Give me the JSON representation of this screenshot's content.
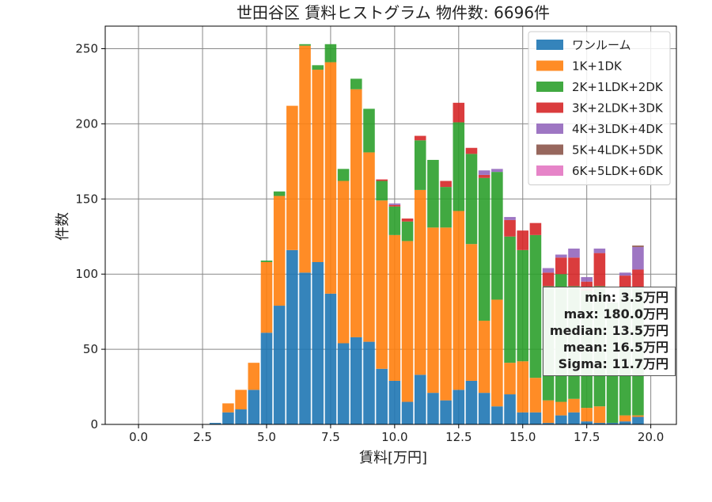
{
  "chart_data": {
    "type": "bar",
    "stacked": true,
    "title": "世田谷区 賃料ヒストグラム 物件数: 6696件",
    "xlabel": "賃料[万円]",
    "ylabel": "件数",
    "xlim": [
      -1.3,
      21.0
    ],
    "ylim": [
      0,
      265
    ],
    "xticks": [
      "0.0",
      "2.5",
      "5.0",
      "7.5",
      "10.0",
      "12.5",
      "15.0",
      "17.5",
      "20.0"
    ],
    "yticks": [
      "0",
      "50",
      "100",
      "150",
      "200",
      "250"
    ],
    "grid": true,
    "legend_position": "top-right",
    "bin_width": 0.5,
    "x": [
      3.0,
      3.5,
      4.0,
      4.5,
      5.0,
      5.5,
      6.0,
      6.5,
      7.0,
      7.5,
      8.0,
      8.5,
      9.0,
      9.5,
      10.0,
      10.5,
      11.0,
      11.5,
      12.0,
      12.5,
      13.0,
      13.5,
      14.0,
      14.5,
      15.0,
      15.5,
      16.0,
      16.5,
      17.0,
      17.5,
      18.0,
      18.5,
      19.0,
      19.5
    ],
    "series": [
      {
        "name": "ワンルーム",
        "color": "#1f77b4",
        "values": [
          1,
          8,
          10,
          23,
          61,
          79,
          116,
          101,
          108,
          87,
          54,
          58,
          55,
          37,
          29,
          15,
          33,
          21,
          16,
          23,
          29,
          21,
          12,
          20,
          8,
          8,
          1,
          6,
          8,
          2,
          1,
          1,
          2,
          5
        ]
      },
      {
        "name": "1K+1DK",
        "color": "#ff7f0e",
        "values": [
          0,
          6,
          13,
          18,
          47,
          73,
          96,
          151,
          128,
          154,
          108,
          165,
          126,
          112,
          97,
          107,
          123,
          110,
          115,
          119,
          91,
          48,
          71,
          21,
          34,
          23,
          15,
          9,
          9,
          9,
          11,
          0,
          4,
          1
        ]
      },
      {
        "name": "2K+1LDK+2DK",
        "color": "#2ca02c",
        "values": [
          0,
          0,
          0,
          0,
          1,
          3,
          0,
          1,
          3,
          12,
          8,
          7,
          29,
          13,
          19,
          13,
          33,
          45,
          27,
          59,
          60,
          95,
          85,
          84,
          74,
          95,
          76,
          85,
          75,
          78,
          80,
          80,
          85,
          85
        ]
      },
      {
        "name": "3K+2LDK+3DK",
        "color": "#d62728",
        "values": [
          0,
          0,
          0,
          0,
          0,
          0,
          0,
          0,
          0,
          0,
          0,
          0,
          0,
          1,
          1,
          2,
          3,
          0,
          4,
          13,
          4,
          2,
          0,
          11,
          13,
          8,
          9,
          11,
          19,
          6,
          22,
          0,
          8,
          12
        ]
      },
      {
        "name": "4K+3LDK+4DK",
        "color": "#9467bd",
        "values": [
          0,
          0,
          0,
          0,
          0,
          0,
          0,
          0,
          0,
          0,
          0,
          0,
          0,
          0,
          1,
          0,
          0,
          0,
          0,
          0,
          0,
          3,
          2,
          2,
          0,
          0,
          3,
          2,
          6,
          3,
          3,
          0,
          2,
          15
        ]
      },
      {
        "name": "5K+4LDK+5DK",
        "color": "#8c564b",
        "values": [
          0,
          0,
          0,
          0,
          0,
          0,
          0,
          0,
          0,
          0,
          0,
          0,
          0,
          0,
          0,
          0,
          0,
          0,
          0,
          0,
          0,
          0,
          0,
          0,
          0,
          0,
          0,
          0,
          0,
          0,
          0,
          0,
          0,
          1
        ]
      },
      {
        "name": "6K+5LDK+6DK",
        "color": "#e377c2",
        "values": [
          0,
          0,
          0,
          0,
          0,
          0,
          0,
          0,
          0,
          0,
          0,
          0,
          0,
          0,
          0,
          0,
          0,
          0,
          0,
          0,
          0,
          0,
          0,
          0,
          0,
          0,
          0,
          0,
          0,
          0,
          0,
          0,
          0,
          0
        ]
      }
    ]
  },
  "stats": [
    "min: 3.5万円",
    "max: 180.0万円",
    "median: 13.5万円",
    "mean: 16.5万円",
    "Sigma: 11.7万円"
  ]
}
